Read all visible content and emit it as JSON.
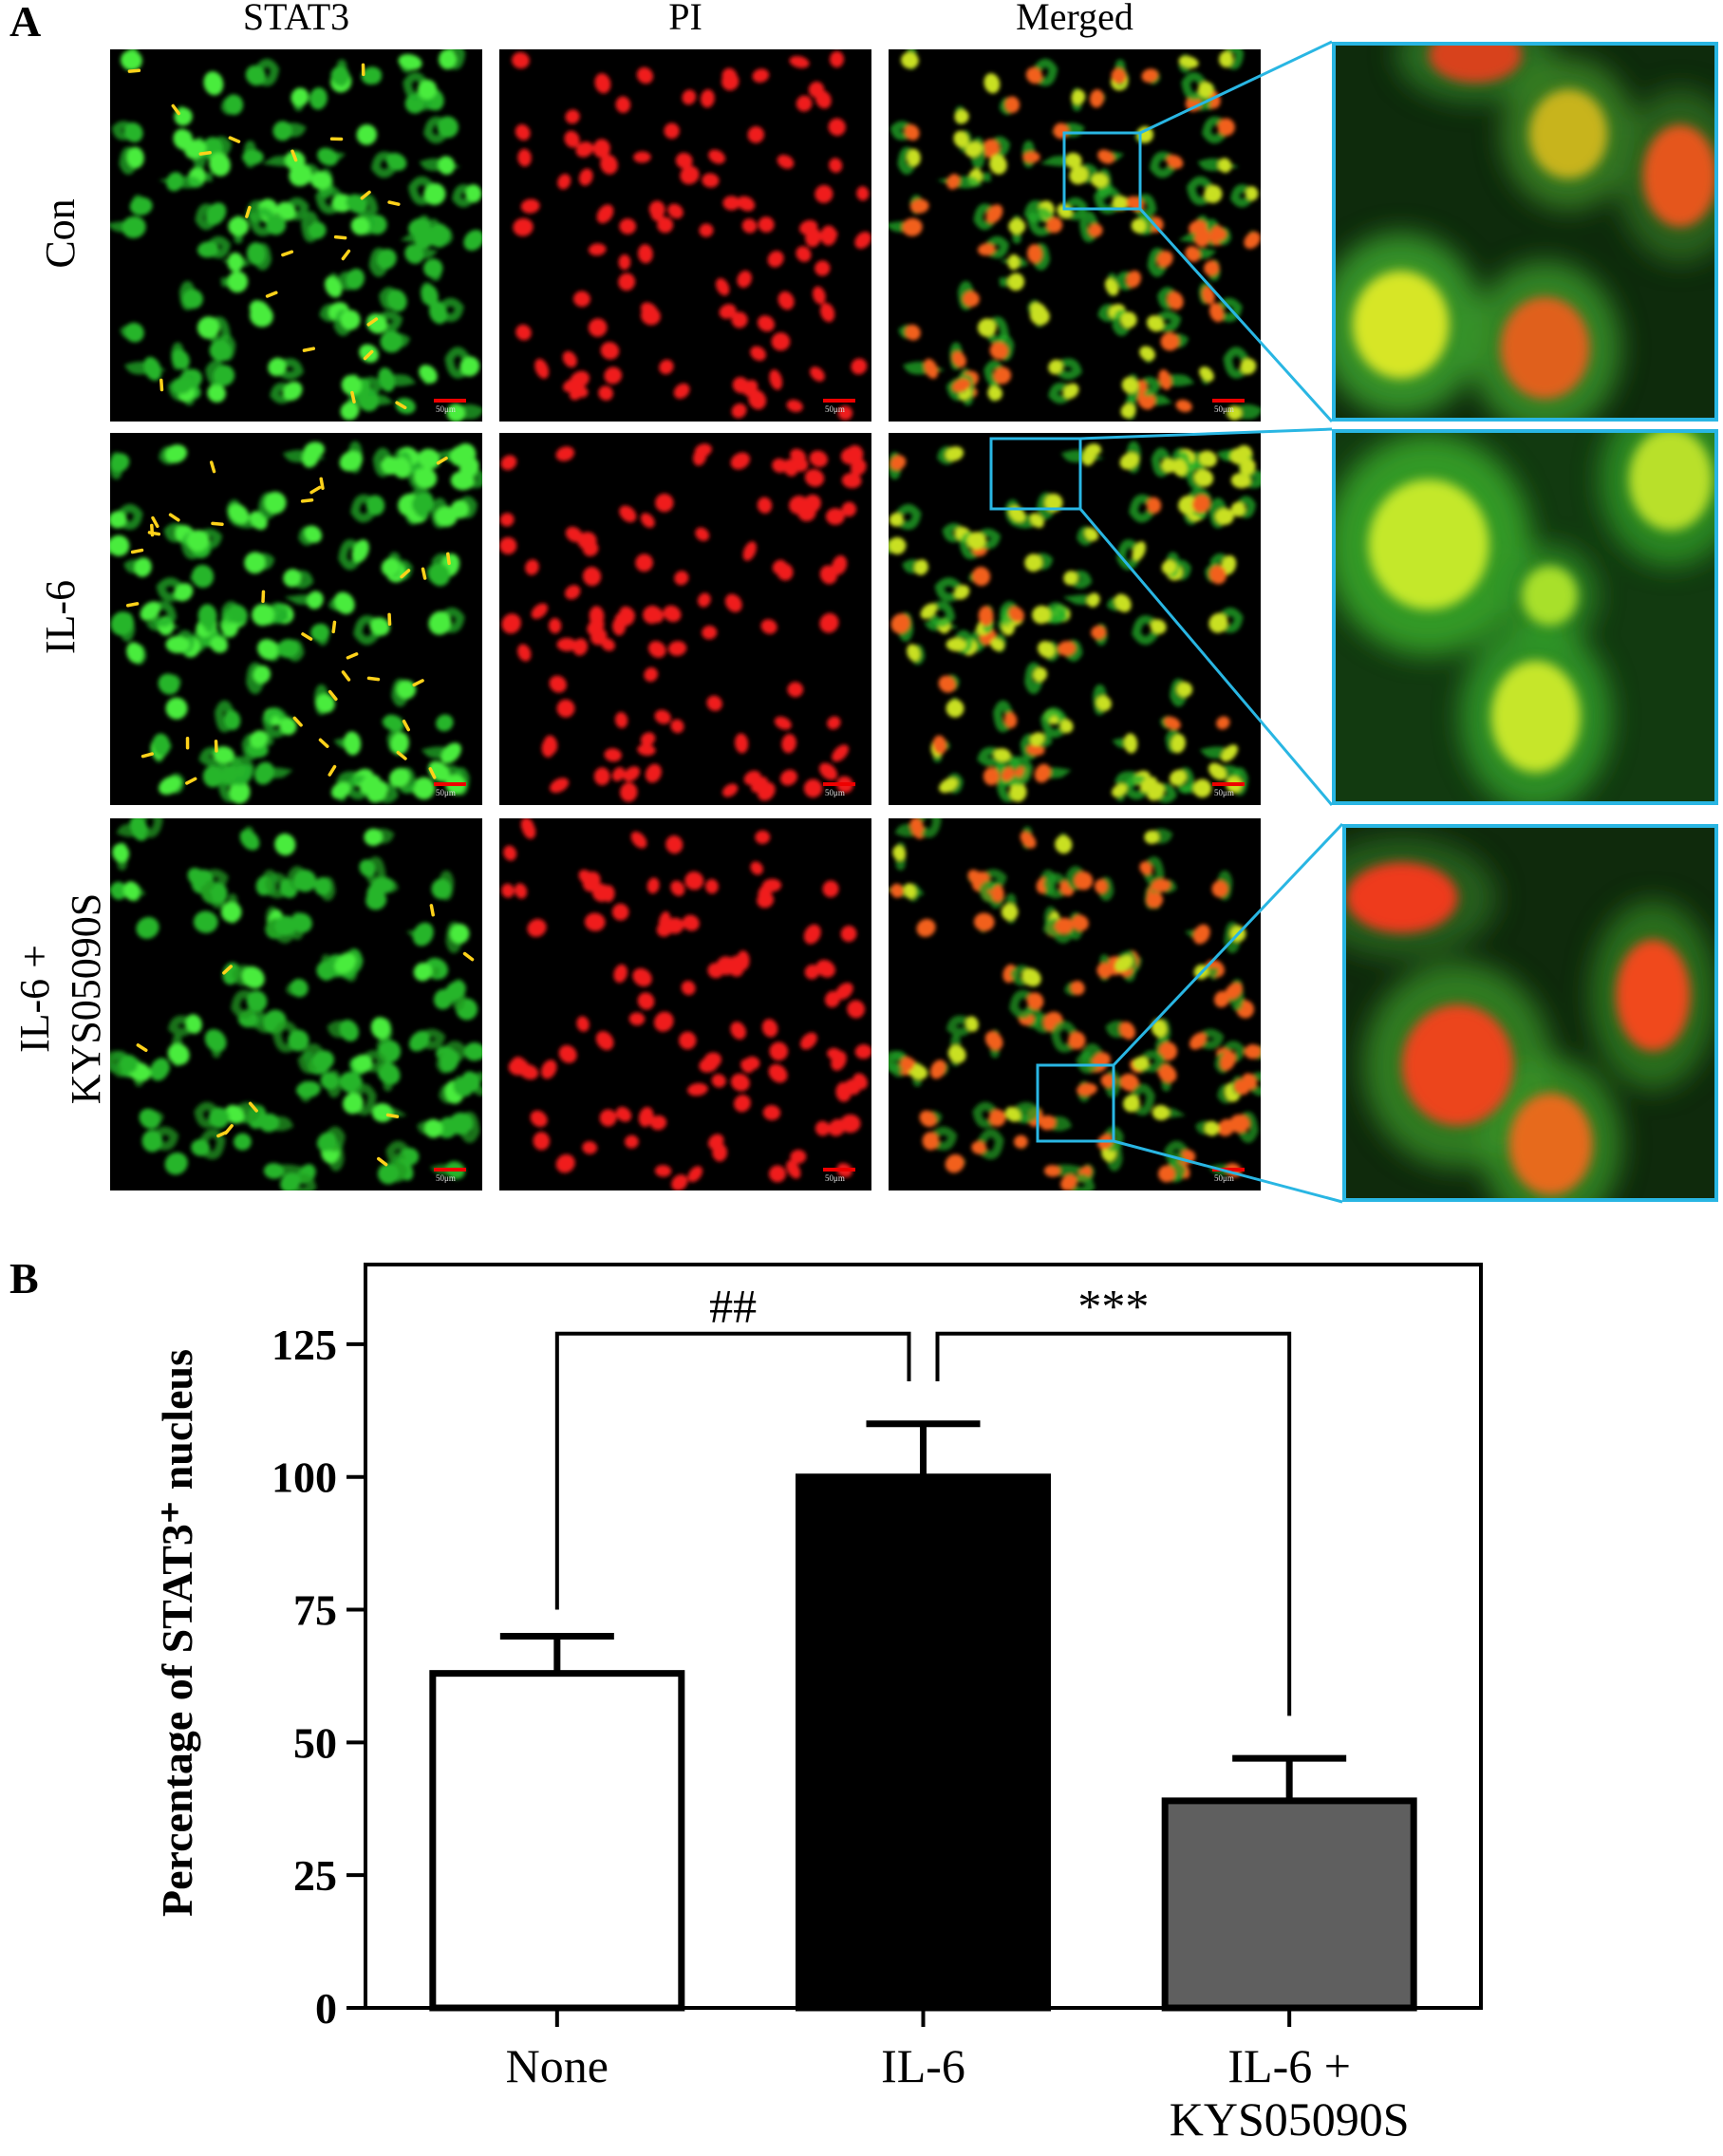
{
  "figure": {
    "panel_a_letter": "A",
    "panel_b_letter": "B",
    "columns": [
      "STAT3",
      "PI",
      "Merged"
    ],
    "rows": [
      {
        "label_line1": "Con",
        "label_line2": ""
      },
      {
        "label_line1": "IL-6",
        "label_line2": ""
      },
      {
        "label_line1": "IL-6 +",
        "label_line2": "KYS05090S"
      }
    ],
    "scale_bar_label": "50μm",
    "colors": {
      "stat3": "#22c42a",
      "pi": "#ff2020",
      "zoom_border": "#29b6e3",
      "arrow": "#ffd21a"
    }
  },
  "chart_data": {
    "type": "bar",
    "categories": [
      "None",
      "IL-6",
      "IL-6 +\nKYS05090S"
    ],
    "values": [
      63,
      100,
      39
    ],
    "errors": [
      7,
      10,
      8
    ],
    "bar_colors": [
      "#ffffff",
      "#000000",
      "#5f5f5f"
    ],
    "ylabel": "Percentage of STAT3⁺ nucleus",
    "ylim": [
      0,
      140
    ],
    "yticks": [
      0,
      25,
      50,
      75,
      100,
      125
    ],
    "significance": [
      {
        "between": [
          0,
          1
        ],
        "label": "##"
      },
      {
        "between": [
          1,
          2
        ],
        "label": "***"
      }
    ],
    "grid": false
  }
}
